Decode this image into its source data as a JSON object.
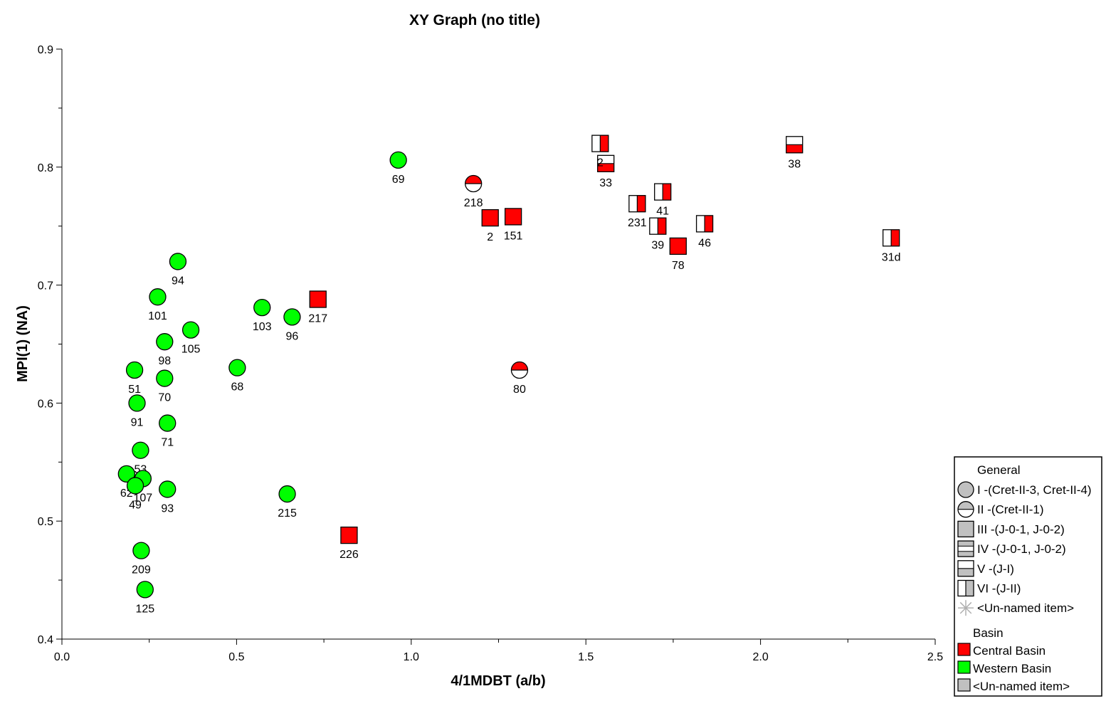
{
  "chart_data": {
    "type": "scatter",
    "title": "XY Graph (no title)",
    "xlabel": "4/1MDBT (a/b)",
    "ylabel": "MPI(1) (NA)",
    "xlim": [
      0.0,
      2.5
    ],
    "ylim": [
      0.4,
      0.9
    ],
    "x_ticks": [
      "0.0",
      "0.5",
      "1.0",
      "1.5",
      "2.0",
      "2.5"
    ],
    "y_ticks": [
      "0.4",
      "0.5",
      "0.6",
      "0.7",
      "0.8",
      "0.9"
    ],
    "grid": false,
    "legend_position": "bottom-right",
    "colors": {
      "Central Basin": "#ff0000",
      "Western Basin": "#00ff00",
      "unnamed": "#c0c0c0"
    },
    "legend": {
      "general_title": "General",
      "general_items": [
        {
          "shape": "circle",
          "label": "I -(Cret-II-3, Cret-II-4)"
        },
        {
          "shape": "circle-half",
          "label": "II -(Cret-II-1)"
        },
        {
          "shape": "square",
          "label": "III -(J-0-1, J-0-2)"
        },
        {
          "shape": "square-h3",
          "label": "IV -(J-0-1, J-0-2)"
        },
        {
          "shape": "square-hb",
          "label": "V -(J-I)"
        },
        {
          "shape": "square-vr",
          "label": "VI -(J-II)"
        },
        {
          "shape": "asterisk",
          "label": "<Un-named item>"
        }
      ],
      "basin_title": "Basin",
      "basin_items": [
        {
          "color": "#ff0000",
          "label": "Central Basin"
        },
        {
          "color": "#00ff00",
          "label": "Western Basin"
        },
        {
          "color": "#c0c0c0",
          "label": "<Un-named item>"
        }
      ]
    },
    "series": [
      {
        "name": "I",
        "shape": "circle",
        "basin": "Western Basin",
        "points": [
          {
            "x": 0.963,
            "y": 0.806,
            "label": "69"
          },
          {
            "x": 0.332,
            "y": 0.72,
            "label": "94"
          },
          {
            "x": 0.274,
            "y": 0.69,
            "label": "101"
          },
          {
            "x": 0.573,
            "y": 0.681,
            "label": "103"
          },
          {
            "x": 0.659,
            "y": 0.673,
            "label": "96"
          },
          {
            "x": 0.369,
            "y": 0.662,
            "label": "105"
          },
          {
            "x": 0.294,
            "y": 0.652,
            "label": "98"
          },
          {
            "x": 0.502,
            "y": 0.63,
            "label": "68"
          },
          {
            "x": 0.208,
            "y": 0.628,
            "label": "51"
          },
          {
            "x": 0.294,
            "y": 0.621,
            "label": "70"
          },
          {
            "x": 0.215,
            "y": 0.6,
            "label": "91"
          },
          {
            "x": 0.302,
            "y": 0.583,
            "label": "71"
          },
          {
            "x": 0.225,
            "y": 0.56,
            "label": "53"
          },
          {
            "x": 0.232,
            "y": 0.536,
            "label": "107"
          },
          {
            "x": 0.185,
            "y": 0.54,
            "label": "62"
          },
          {
            "x": 0.21,
            "y": 0.53,
            "label": "49"
          },
          {
            "x": 0.302,
            "y": 0.527,
            "label": "93"
          },
          {
            "x": 0.645,
            "y": 0.523,
            "label": "215"
          },
          {
            "x": 0.227,
            "y": 0.475,
            "label": "209"
          },
          {
            "x": 0.238,
            "y": 0.442,
            "label": "125"
          }
        ]
      },
      {
        "name": "II",
        "shape": "circle-half",
        "basin": "Central Basin",
        "points": [
          {
            "x": 1.178,
            "y": 0.786,
            "label": "218"
          },
          {
            "x": 1.31,
            "y": 0.628,
            "label": "80"
          }
        ]
      },
      {
        "name": "III",
        "shape": "square",
        "basin": "Central Basin",
        "points": [
          {
            "x": 1.226,
            "y": 0.757,
            "label": "2"
          },
          {
            "x": 1.292,
            "y": 0.758,
            "label": "151"
          },
          {
            "x": 0.733,
            "y": 0.688,
            "label": "217"
          },
          {
            "x": 1.764,
            "y": 0.733,
            "label": "78"
          },
          {
            "x": 0.822,
            "y": 0.488,
            "label": "226"
          }
        ]
      },
      {
        "name": "V",
        "shape": "square-hb",
        "basin": "Central Basin",
        "points": [
          {
            "x": 1.557,
            "y": 0.803,
            "label": "33"
          },
          {
            "x": 2.097,
            "y": 0.819,
            "label": "38"
          }
        ]
      },
      {
        "name": "VI",
        "shape": "square-vr",
        "basin": "Central Basin",
        "points": [
          {
            "x": 1.541,
            "y": 0.82,
            "label": "2"
          },
          {
            "x": 1.72,
            "y": 0.779,
            "label": "41"
          },
          {
            "x": 1.647,
            "y": 0.769,
            "label": "231"
          },
          {
            "x": 1.706,
            "y": 0.75,
            "label": "39"
          },
          {
            "x": 1.84,
            "y": 0.752,
            "label": "46"
          },
          {
            "x": 2.374,
            "y": 0.74,
            "label": "31d"
          }
        ]
      }
    ]
  }
}
